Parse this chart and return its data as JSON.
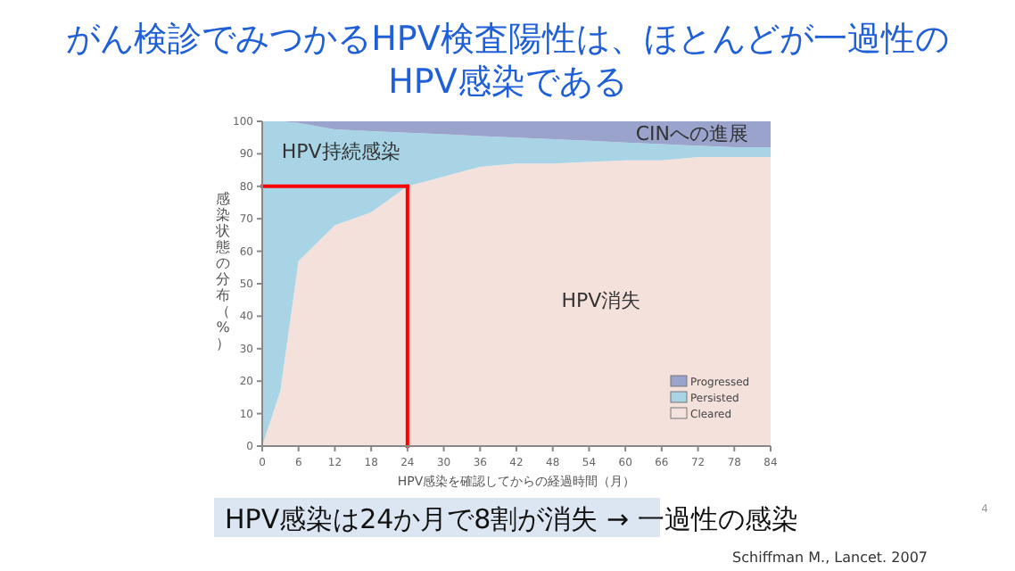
{
  "chart_data": {
    "type": "area",
    "stacked": true,
    "title": "がん検診でみつかるHPV検査陽性は、ほとんどが一過性の\nHPV感染である",
    "xlabel": "HPV感染を確認してからの経過時間（月）",
    "ylabel": "感染状態の分布（%）",
    "x": [
      0,
      3,
      6,
      12,
      18,
      24,
      30,
      36,
      42,
      48,
      54,
      60,
      66,
      72,
      78,
      84
    ],
    "series": [
      {
        "name": "Cleared",
        "color": "#f5e1dc",
        "values": [
          0,
          17,
          57,
          68,
          72,
          80,
          83,
          86,
          87,
          87,
          87.5,
          88,
          88,
          89,
          89,
          89
        ]
      },
      {
        "name": "Persisted",
        "color": "#a8d4e6",
        "values": [
          100,
          83,
          42.5,
          29.5,
          25,
          16.5,
          13,
          9.5,
          8,
          7.5,
          6.5,
          5.5,
          5,
          3.5,
          3,
          3
        ]
      },
      {
        "name": "Progressed",
        "color": "#9aa3cc",
        "values": [
          0,
          0,
          0.5,
          2.5,
          3,
          3.5,
          4,
          4.5,
          5,
          5.5,
          6,
          6.5,
          7,
          7.5,
          8,
          8
        ]
      }
    ],
    "ref_lines": [
      {
        "axis": "y",
        "value": 80,
        "color": "#ff0000"
      },
      {
        "axis": "x",
        "value": 24,
        "color": "#ff0000"
      }
    ],
    "xlim": [
      0,
      84
    ],
    "xticks": [
      0,
      6,
      12,
      18,
      24,
      30,
      36,
      42,
      48,
      54,
      60,
      66,
      72,
      78,
      84
    ],
    "ylim": [
      0,
      100
    ],
    "yticks": [
      0,
      10,
      20,
      30,
      40,
      50,
      60,
      70,
      80,
      90,
      100
    ],
    "legend": "bottom right",
    "annotations": [
      "HPV感染は24か月で8割が消失 → 一過性の感染",
      "Schiffman M., Lancet. 2007",
      "4",
      "CINへの進展",
      "HPV持続感染",
      "HPV消失"
    ]
  }
}
